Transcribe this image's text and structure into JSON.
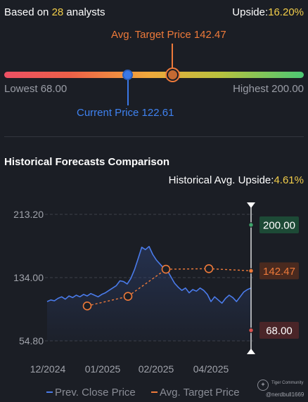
{
  "summary": {
    "based_prefix": "Based on ",
    "analyst_count": "28",
    "based_suffix": " analysts",
    "upside_label": "Upside:",
    "upside_value": "16.20%"
  },
  "gauge": {
    "avg_target_label": "Avg. Target Price 142.47",
    "current_label": "Current Price 122.61",
    "lowest_label": "Lowest 68.00",
    "highest_label": "Highest 200.00",
    "low": 68.0,
    "high": 200.0,
    "current": 122.61,
    "avg_target": 142.47
  },
  "historical": {
    "title": "Historical Forecasts Comparison",
    "upside_label": "Historical Avg. Upside:",
    "upside_value": "4.61%"
  },
  "chart_data": {
    "type": "line",
    "ylim": [
      54.8,
      213.2
    ],
    "y_ticks": [
      "213.20",
      "134.00",
      "54.80"
    ],
    "x_ticks": [
      "12/2024",
      "01/2025",
      "02/2025",
      "04/2025"
    ],
    "series": [
      {
        "name": "Prev. Close Price",
        "color": "#4a7bea",
        "values": [
          104,
          106,
          105,
          108,
          110,
          107,
          111,
          109,
          112,
          110,
          113,
          111,
          114,
          112,
          110,
          113,
          115,
          118,
          121,
          124,
          130,
          129,
          126,
          133,
          144,
          158,
          172,
          169,
          173,
          163,
          156,
          151,
          146,
          143,
          135,
          127,
          122,
          118,
          121,
          115,
          119,
          117,
          121,
          118,
          113,
          104,
          110,
          106,
          102,
          108,
          112,
          109,
          104,
          110,
          116,
          119,
          121
        ]
      },
      {
        "name": "Avg. Target Price",
        "color": "#ee7a3a",
        "values": [
          98.5,
          110.5,
          144.5,
          145.2,
          142.5
        ]
      }
    ],
    "markers": {
      "high": {
        "value": 200.0,
        "label": "200.00",
        "color": "#3fa56b"
      },
      "avg": {
        "value": 142.47,
        "label": "142.47",
        "color": "#ee7a3a"
      },
      "low": {
        "value": 68.0,
        "label": "68.00",
        "color": "#d9534f"
      }
    },
    "legend": [
      {
        "name": "Prev. Close Price",
        "color": "#4a7bea"
      },
      {
        "name": "Avg. Target Price",
        "color": "#ee7a3a"
      }
    ]
  },
  "watermark": {
    "brand": "Tiger Community",
    "user": "@nerdbull1669"
  }
}
